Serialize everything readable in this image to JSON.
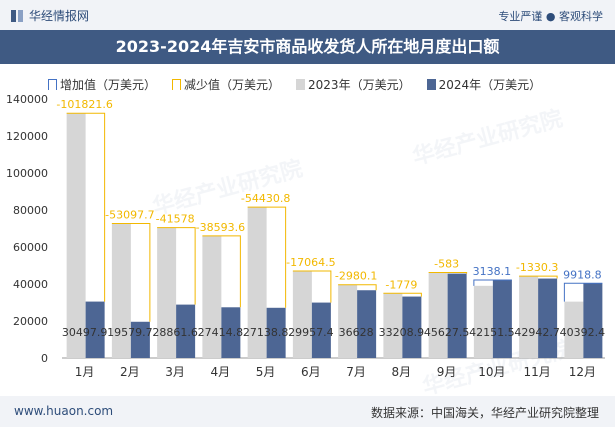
{
  "header": {
    "brand": "华经情报网",
    "slogan": "专业严谨 ● 客观科学"
  },
  "footer": {
    "site": "www.huaon.com",
    "source": "数据来源：中国海关，华经产业研究院整理"
  },
  "watermark": "华经产业研究院",
  "legend": {
    "increase": "增加值（万美元）",
    "decrease": "减少值（万美元）",
    "y2023": "2023年（万美元）",
    "y2024": "2024年（万美元）"
  },
  "colors": {
    "bar_2023": "#d6d6d6",
    "bar_2024": "#4d6694",
    "increase": "#4472c4",
    "decrease": "#f2b800",
    "title_bg": "#3f5a83"
  },
  "chart_data": {
    "type": "bar",
    "title": "2023-2024年吉安市商品收发货人所在地月度出口额",
    "categories": [
      "1月",
      "2月",
      "3月",
      "4月",
      "5月",
      "6月",
      "7月",
      "8月",
      "9月",
      "10月",
      "11月",
      "12月"
    ],
    "series": [
      {
        "name": "2023年（万美元）",
        "values": [
          132319.5,
          72677.4,
          70439.6,
          66008.4,
          81569.6,
          47021.9,
          39608.1,
          34987.9,
          46210.5,
          39013.4,
          44273.0,
          30473.6
        ]
      },
      {
        "name": "2024年（万美元）",
        "values": [
          30497.9,
          19579.7,
          28861.6,
          27414.8,
          27138.8,
          29957.4,
          36628,
          33208.9,
          45627.5,
          42151.5,
          42942.7,
          40392.4
        ]
      }
    ],
    "differences": [
      -101821.6,
      -53097.7,
      -41578,
      -38593.6,
      -54430.8,
      -17064.5,
      -2980.1,
      -1779,
      -583,
      3138.1,
      -1330.3,
      9918.8
    ],
    "diff_labels": [
      "-101821.6",
      "-53097.7",
      "-41578",
      "-38593.6",
      "-54430.8",
      "-17064.5",
      "-2980.1",
      "-1779",
      "-583",
      "3138.1",
      "-1330.3",
      "9918.8"
    ],
    "value_labels_2024": [
      "30497.9",
      "19579.7",
      "28861.6",
      "27414.8",
      "27138.8",
      "29957.4",
      "36628",
      "33208.9",
      "45627.5",
      "42151.5",
      "42942.7",
      "40392.4"
    ],
    "ylim": [
      0,
      140000
    ],
    "yticks": [
      0,
      20000,
      40000,
      60000,
      80000,
      100000,
      120000,
      140000
    ],
    "ytick_labels": [
      "0",
      "20000",
      "40000",
      "60000",
      "80000",
      "100000",
      "120000",
      "140000"
    ],
    "grid": false,
    "legend_position": "top"
  }
}
